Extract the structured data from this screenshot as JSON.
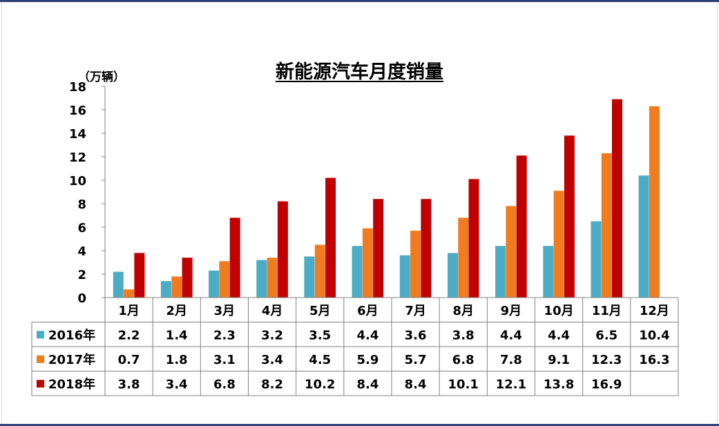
{
  "chart_data": {
    "type": "bar",
    "title": "新能源汽车月度销量",
    "ylabel": "（万辆）",
    "ylim": [
      0,
      18
    ],
    "yticks": [
      0,
      2,
      4,
      6,
      8,
      10,
      12,
      14,
      16,
      18
    ],
    "categories": [
      "1月",
      "2月",
      "3月",
      "4月",
      "5月",
      "6月",
      "7月",
      "8月",
      "9月",
      "10月",
      "11月",
      "12月"
    ],
    "series": [
      {
        "name": "2016年",
        "color": "#4bacc6",
        "values": [
          2.2,
          1.4,
          2.3,
          3.2,
          3.5,
          4.4,
          3.6,
          3.8,
          4.4,
          4.4,
          6.5,
          10.4
        ]
      },
      {
        "name": "2017年",
        "color": "#f07c1f",
        "values": [
          0.7,
          1.8,
          3.1,
          3.4,
          4.5,
          5.9,
          5.7,
          6.8,
          7.8,
          9.1,
          12.3,
          16.3
        ]
      },
      {
        "name": "2018年",
        "color": "#c00000",
        "values": [
          3.8,
          3.4,
          6.8,
          8.2,
          10.2,
          8.4,
          8.4,
          10.1,
          12.1,
          13.8,
          16.9,
          null
        ]
      }
    ],
    "grid": false,
    "legend": "data-table-left",
    "data_table": true
  }
}
